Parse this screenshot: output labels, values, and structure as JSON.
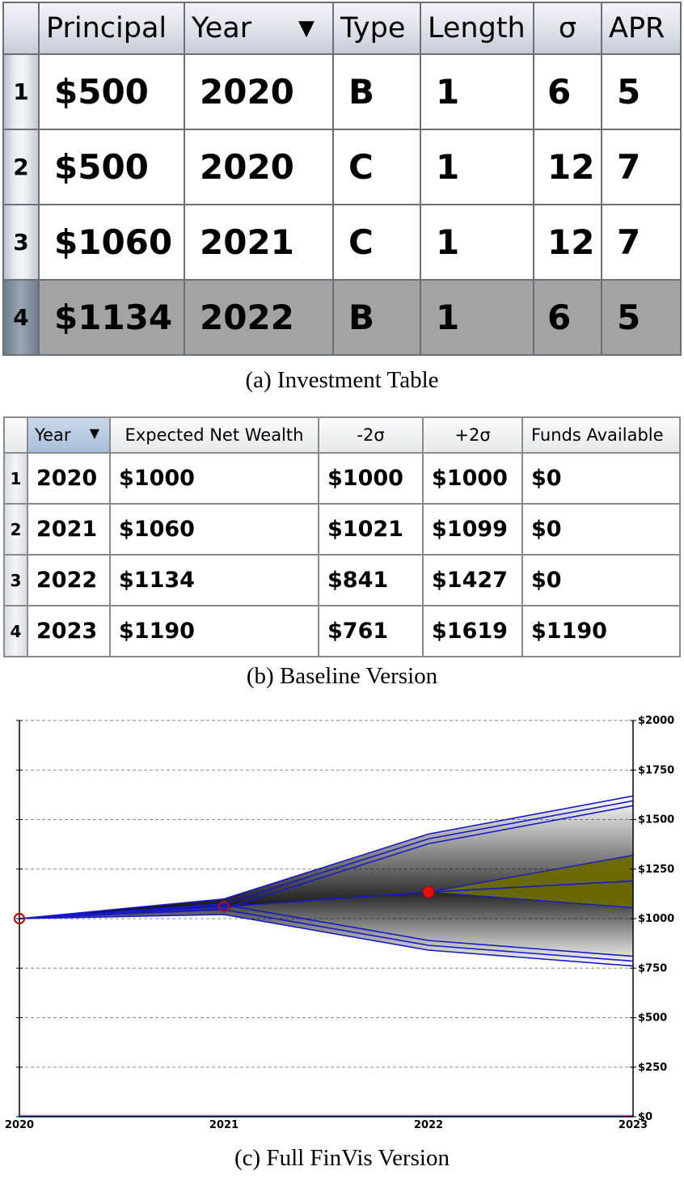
{
  "investment_table": {
    "columns": [
      "",
      "Principal",
      "Year",
      "Type",
      "Length",
      "σ",
      "APR"
    ],
    "sort_arrow": "▼",
    "rows": [
      {
        "n": "1",
        "principal": "$500",
        "year": "2020",
        "type": "B",
        "length": "1",
        "sigma": "6",
        "apr": "5"
      },
      {
        "n": "2",
        "principal": "$500",
        "year": "2020",
        "type": "C",
        "length": "1",
        "sigma": "12",
        "apr": "7"
      },
      {
        "n": "3",
        "principal": "$1060",
        "year": "2021",
        "type": "C",
        "length": "1",
        "sigma": "12",
        "apr": "7"
      },
      {
        "n": "4",
        "principal": "$1134",
        "year": "2022",
        "type": "B",
        "length": "1",
        "sigma": "6",
        "apr": "5"
      }
    ],
    "selected_row": 4
  },
  "captions": {
    "a": "(a)  Investment Table",
    "b": "(b)  Baseline Version",
    "c": "(c)  Full FinVis Version"
  },
  "baseline_table": {
    "columns": [
      "",
      "Year",
      "Expected Net Wealth",
      "-2σ",
      "+2σ",
      "Funds Available"
    ],
    "sort_arrow": "▼",
    "rows": [
      {
        "n": "1",
        "year": "2020",
        "expected": "$1000",
        "minus2": "$1000",
        "plus2": "$1000",
        "funds": "$0"
      },
      {
        "n": "2",
        "year": "2021",
        "expected": "$1060",
        "minus2": "$1021",
        "plus2": "$1099",
        "funds": "$0"
      },
      {
        "n": "3",
        "year": "2022",
        "expected": "$1134",
        "minus2": "$841",
        "plus2": "$1427",
        "funds": "$0"
      },
      {
        "n": "4",
        "year": "2023",
        "expected": "$1190",
        "minus2": "$761",
        "plus2": "$1619",
        "funds": "$1190"
      }
    ]
  },
  "chart_data": {
    "type": "area",
    "x_ticks": [
      "2020",
      "2021",
      "2022",
      "2023"
    ],
    "y_ticks": [
      "$0",
      "$250",
      "$500",
      "$750",
      "$1000",
      "$1250",
      "$1500",
      "$1750",
      "$2000"
    ],
    "xlim": [
      2020,
      2023
    ],
    "ylim": [
      0,
      2000
    ],
    "grid": true,
    "colors": {
      "band": "#1818c8",
      "fill": "#000000",
      "gain": "#6b6b00",
      "marker": "#e01010",
      "baseline": "#e040c0"
    },
    "series": [
      {
        "values": [
          [
            2020,
            1000
          ],
          [
            2021,
            1060
          ],
          [
            2022,
            1134
          ],
          [
            2023,
            1190
          ]
        ]
      },
      {
        "values": [
          [
            2020,
            1000
          ],
          [
            2021,
            1099
          ],
          [
            2022,
            1427
          ],
          [
            2023,
            1619
          ]
        ]
      },
      {
        "values": [
          [
            2020,
            1000
          ],
          [
            2021,
            1021
          ],
          [
            2022,
            841
          ],
          [
            2023,
            761
          ]
        ]
      },
      {
        "values": [
          [
            2022,
            1134
          ],
          [
            2023,
            1320
          ]
        ]
      },
      {
        "values": [
          [
            2022,
            1134
          ],
          [
            2023,
            1055
          ]
        ]
      },
      {
        "values": [
          [
            2020,
            0
          ],
          [
            2023,
            0
          ]
        ]
      }
    ],
    "markers": [
      {
        "x": 2020,
        "y": 1000,
        "style": "hollow"
      },
      {
        "x": 2021,
        "y": 1060,
        "style": "hollow"
      },
      {
        "x": 2022,
        "y": 1134,
        "style": "filled"
      }
    ]
  }
}
